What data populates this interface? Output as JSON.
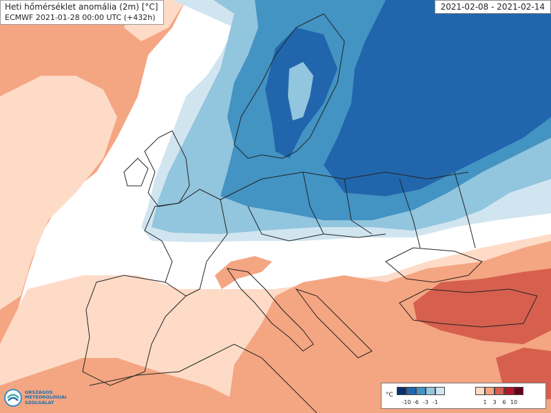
{
  "title": {
    "line1": "Heti hőmérséklet anomália (2m) [°C]",
    "line2": "ECMWF 2021-01-28 00:00 UTC (+432h)"
  },
  "date_range": "2021-02-08 - 2021-02-14",
  "legend": {
    "unit": "°C",
    "ticks_cold": [
      "-10",
      "-6",
      "-3",
      "-1"
    ],
    "ticks_warm": [
      "1",
      "3",
      "6",
      "10"
    ],
    "colors_cold": [
      "#08306b",
      "#2166ac",
      "#4393c3",
      "#92c5de",
      "#d1e5f0"
    ],
    "colors_warm": [
      "#fddbc7",
      "#f4a582",
      "#d6604d",
      "#b2182b",
      "#67001f"
    ]
  },
  "logo": {
    "line1": "ORSZÁGOS",
    "line2": "METEOROLÓGIAI",
    "line3": "SZOLGÁLAT"
  },
  "colors": {
    "sea": "#ffffff",
    "cold_1": "#d1e5f0",
    "cold_2": "#92c5de",
    "cold_3": "#4393c3",
    "cold_4": "#2166ac",
    "warm_1": "#fddbc7",
    "warm_2": "#f4a582",
    "warm_3": "#d6604d"
  }
}
